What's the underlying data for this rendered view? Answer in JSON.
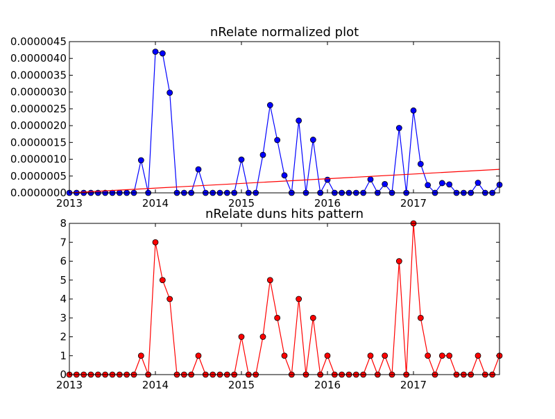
{
  "chart_data": [
    {
      "type": "line",
      "title": "nRelate normalized plot",
      "xlabel": "",
      "ylabel": "",
      "x_ticks": [
        "2013",
        "2014",
        "2015",
        "2016",
        "2017"
      ],
      "y_ticks": [
        "0.0000000",
        "0.0000005",
        "0.0000010",
        "0.0000015",
        "0.0000020",
        "0.0000025",
        "0.0000030",
        "0.0000035",
        "0.0000040",
        "0.0000045"
      ],
      "ylim": [
        0,
        4.5e-06
      ],
      "grid": false,
      "series": [
        {
          "color": "#0000ff",
          "marker_color": "#0000ff",
          "values": [
            0,
            0,
            0,
            0,
            0,
            0,
            0,
            0,
            0,
            0,
            9.7e-07,
            0,
            4.2e-06,
            4.15e-06,
            2.98e-06,
            0,
            0,
            0,
            7e-07,
            0,
            0,
            0,
            0,
            0,
            9.9e-07,
            0,
            0,
            1.13e-06,
            2.61e-06,
            1.57e-06,
            5.2e-07,
            0,
            2.15e-06,
            0,
            1.58e-06,
            0,
            3.9e-07,
            0,
            0,
            0,
            0,
            0,
            4e-07,
            0,
            2.6e-07,
            0,
            1.93e-06,
            0,
            2.45e-06,
            8.6e-07,
            2.3e-07,
            0,
            2.9e-07,
            2.5e-07,
            0,
            0,
            0,
            3e-07,
            0,
            0,
            2.4e-07
          ]
        },
        {
          "color": "#ff0000",
          "values": [
            0,
            7e-07
          ]
        }
      ]
    },
    {
      "type": "line",
      "title": "nRelate duns hits pattern",
      "xlabel": "",
      "ylabel": "",
      "x_ticks": [
        "2013",
        "2014",
        "2015",
        "2016",
        "2017"
      ],
      "y_ticks": [
        "0",
        "1",
        "2",
        "3",
        "4",
        "5",
        "6",
        "7",
        "8"
      ],
      "ylim": [
        0,
        8
      ],
      "grid": false,
      "series": [
        {
          "color": "#ff0000",
          "marker_color": "#ff0000",
          "values": [
            0,
            0,
            0,
            0,
            0,
            0,
            0,
            0,
            0,
            0,
            1,
            0,
            7,
            5,
            4,
            0,
            0,
            0,
            1,
            0,
            0,
            0,
            0,
            0,
            2,
            0,
            0,
            2,
            5,
            3,
            1,
            0,
            4,
            0,
            3,
            0,
            1,
            0,
            0,
            0,
            0,
            0,
            1,
            0,
            1,
            0,
            6,
            0,
            8,
            3,
            1,
            0,
            1,
            1,
            0,
            0,
            0,
            1,
            0,
            0,
            1
          ]
        }
      ]
    }
  ]
}
